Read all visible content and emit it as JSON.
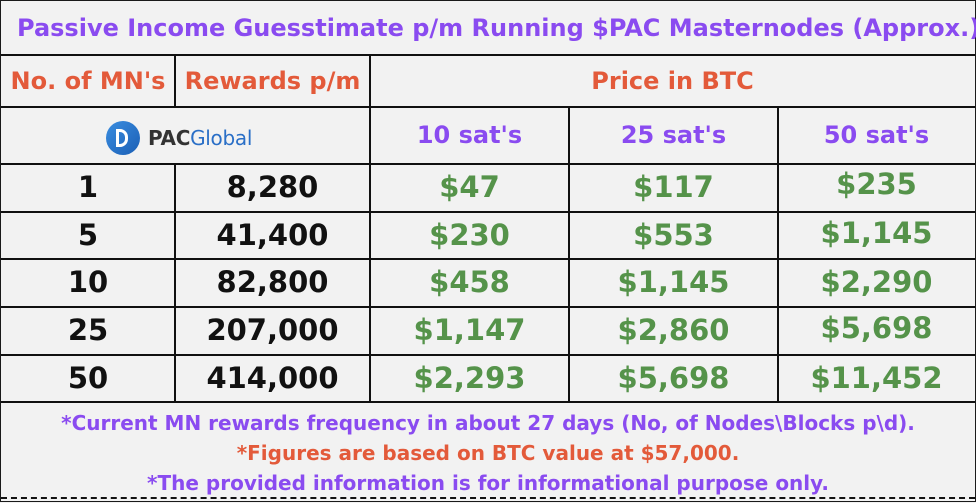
{
  "title": "Passive Income Guesstimate p/m Running $PAC Masternodes (Approx.)",
  "headers": {
    "mn": "No. of MN's",
    "rewards": "Rewards p/m",
    "price": "Price in BTC",
    "col1": "10 sat's",
    "col2": "25 sat's",
    "col3": "50 sat's"
  },
  "logo": {
    "prefix": "PAC",
    "suffix": "Global"
  },
  "rows": [
    {
      "mn": "1",
      "rewards": "8,280",
      "c1": "$47",
      "c2": "$117",
      "c3": "$235"
    },
    {
      "mn": "5",
      "rewards": "41,400",
      "c1": "$230",
      "c2": "$553",
      "c3": "$1,145"
    },
    {
      "mn": "10",
      "rewards": "82,800",
      "c1": "$458",
      "c2": "$1,145",
      "c3": "$2,290"
    },
    {
      "mn": "25",
      "rewards": "207,000",
      "c1": "$1,147",
      "c2": "$2,860",
      "c3": "$5,698"
    },
    {
      "mn": "50",
      "rewards": "414,000",
      "c1": "$2,293",
      "c2": "$5,698",
      "c3": "$11,452"
    }
  ],
  "notes": {
    "line1": "*Current MN rewards frequency in about 27 days (No, of Nodes\\Blocks p\\d).",
    "line2": "*Figures are based on BTC value at $57,000.",
    "line3": "*The provided information is for informational purpose only."
  },
  "colors": {
    "purple": "#8a4bf0",
    "orange": "#e35a3a",
    "green": "#55934a"
  }
}
